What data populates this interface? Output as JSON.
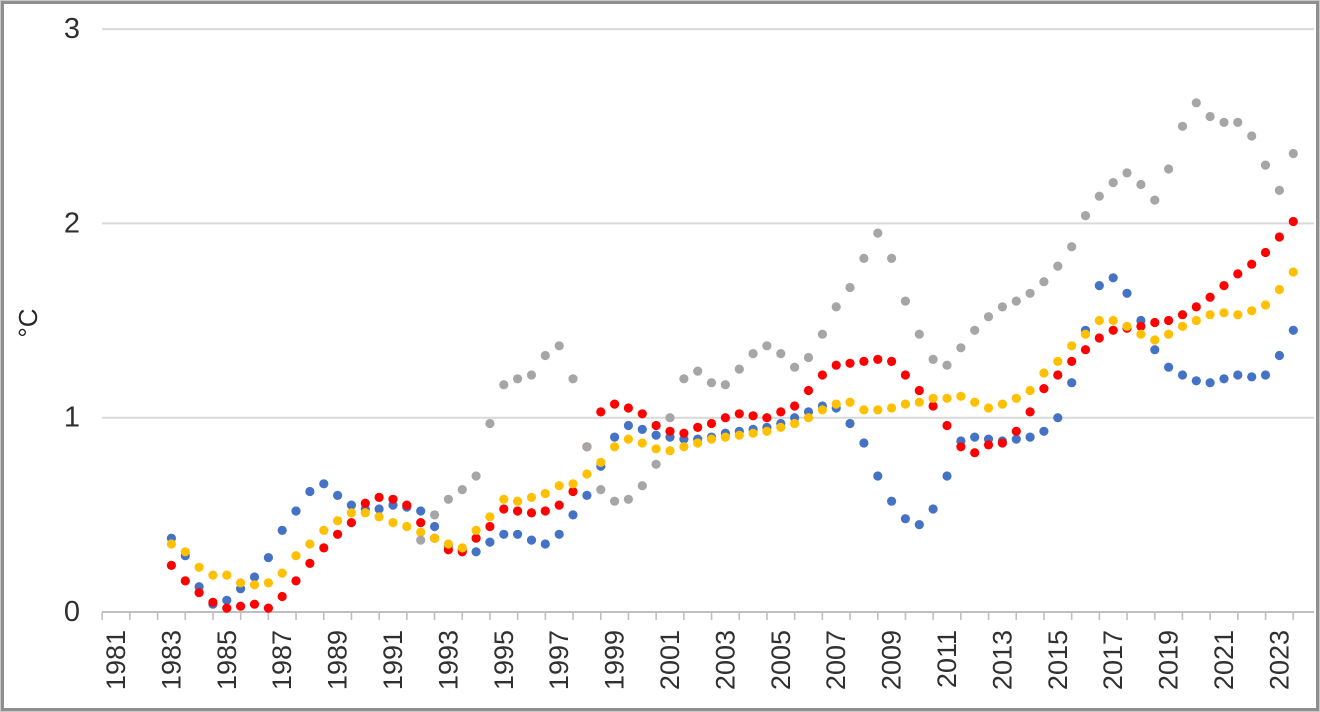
{
  "chart_data": {
    "type": "scatter",
    "title": "",
    "ylabel": "°C",
    "xlabel": "",
    "ylim": [
      0,
      3
    ],
    "yticks": [
      0,
      1,
      2,
      3
    ],
    "xlim": [
      1980.5,
      2024.3
    ],
    "x_labeled_years": [
      1981,
      1983,
      1985,
      1987,
      1989,
      1991,
      1993,
      1995,
      1997,
      1999,
      2001,
      2003,
      2005,
      2007,
      2009,
      2011,
      2013,
      2015,
      2017,
      2019,
      2021,
      2023
    ],
    "x_minor_tick_start": 1980.5,
    "x_minor_tick_step": 1,
    "point_step_years": 0.5,
    "grid": true,
    "legend": "none",
    "axis_colors": {
      "gridline": "#D9D9D9",
      "axis_line": "#BFBFBF",
      "tick": "#BFBFBF",
      "text": "#303030"
    },
    "series": [
      {
        "name": "blue-series",
        "color": "#4472C4",
        "x_start": 1983.0,
        "values": [
          0.38,
          0.29,
          0.13,
          0.04,
          0.06,
          0.12,
          0.18,
          0.28,
          0.42,
          0.52,
          0.62,
          0.66,
          0.6,
          0.55,
          0.53,
          0.53,
          0.55,
          0.54,
          0.52,
          0.44,
          0.34,
          0.32,
          0.31,
          0.36,
          0.4,
          0.4,
          0.37,
          0.35,
          0.4,
          0.5,
          0.6,
          0.75,
          0.9,
          0.96,
          0.94,
          0.91,
          0.9,
          0.89,
          0.89,
          0.9,
          0.92,
          0.93,
          0.94,
          0.95,
          0.97,
          1.0,
          1.03,
          1.06,
          1.05,
          0.97,
          0.87,
          0.7,
          0.57,
          0.48,
          0.45,
          0.53,
          0.7,
          0.88,
          0.9,
          0.89,
          0.88,
          0.89,
          0.9,
          0.93,
          1.0,
          1.18,
          1.45,
          1.68,
          1.72,
          1.64,
          1.5,
          1.35,
          1.26,
          1.22,
          1.19,
          1.18,
          1.2,
          1.22,
          1.21,
          1.22,
          1.32,
          1.45
        ]
      },
      {
        "name": "red-series",
        "color": "#FF0000",
        "x_start": 1983.0,
        "values": [
          0.24,
          0.16,
          0.1,
          0.05,
          0.02,
          0.03,
          0.04,
          0.02,
          0.08,
          0.16,
          0.25,
          0.33,
          0.4,
          0.46,
          0.56,
          0.59,
          0.58,
          0.55,
          0.46,
          0.38,
          0.32,
          0.31,
          0.38,
          0.44,
          0.53,
          0.52,
          0.51,
          0.52,
          0.55,
          0.62,
          0.85,
          1.03,
          1.07,
          1.05,
          1.02,
          0.96,
          0.93,
          0.92,
          0.95,
          0.97,
          1.0,
          1.02,
          1.01,
          1.0,
          1.03,
          1.06,
          1.14,
          1.22,
          1.27,
          1.28,
          1.29,
          1.3,
          1.29,
          1.22,
          1.14,
          1.06,
          0.96,
          0.85,
          0.82,
          0.86,
          0.87,
          0.93,
          1.03,
          1.15,
          1.22,
          1.29,
          1.35,
          1.41,
          1.45,
          1.46,
          1.47,
          1.49,
          1.5,
          1.53,
          1.57,
          1.62,
          1.68,
          1.74,
          1.79,
          1.85,
          1.93,
          2.01
        ]
      },
      {
        "name": "yellow-series",
        "color": "#FFC000",
        "x_start": 1983.0,
        "values": [
          0.35,
          0.31,
          0.23,
          0.19,
          0.19,
          0.15,
          0.14,
          0.15,
          0.2,
          0.29,
          0.35,
          0.42,
          0.47,
          0.51,
          0.51,
          0.49,
          0.46,
          0.44,
          0.41,
          0.38,
          0.35,
          0.33,
          0.42,
          0.49,
          0.58,
          0.57,
          0.59,
          0.61,
          0.65,
          0.66,
          0.71,
          0.77,
          0.85,
          0.89,
          0.87,
          0.84,
          0.83,
          0.85,
          0.87,
          0.89,
          0.9,
          0.91,
          0.92,
          0.93,
          0.95,
          0.97,
          1.0,
          1.04,
          1.07,
          1.08,
          1.04,
          1.04,
          1.05,
          1.07,
          1.08,
          1.1,
          1.1,
          1.11,
          1.08,
          1.05,
          1.07,
          1.1,
          1.14,
          1.23,
          1.29,
          1.37,
          1.43,
          1.5,
          1.5,
          1.47,
          1.43,
          1.4,
          1.43,
          1.47,
          1.5,
          1.53,
          1.54,
          1.53,
          1.55,
          1.58,
          1.66,
          1.75
        ]
      },
      {
        "name": "gray-series",
        "color": "#A6A6A6",
        "x_start": 1992.0,
        "values": [
          0.37,
          0.5,
          0.58,
          0.63,
          0.7,
          0.97,
          1.17,
          1.2,
          1.22,
          1.32,
          1.37,
          1.2,
          0.85,
          0.63,
          0.57,
          0.58,
          0.65,
          0.76,
          1.0,
          1.2,
          1.24,
          1.18,
          1.17,
          1.25,
          1.33,
          1.37,
          1.33,
          1.26,
          1.31,
          1.43,
          1.57,
          1.67,
          1.82,
          1.95,
          1.82,
          1.6,
          1.43,
          1.3,
          1.27,
          1.36,
          1.45,
          1.52,
          1.57,
          1.6,
          1.64,
          1.7,
          1.78,
          1.88,
          2.04,
          2.14,
          2.21,
          2.26,
          2.2,
          2.12,
          2.28,
          2.5,
          2.62,
          2.55,
          2.52,
          2.52,
          2.45,
          2.3,
          2.17,
          2.36
        ]
      }
    ]
  }
}
